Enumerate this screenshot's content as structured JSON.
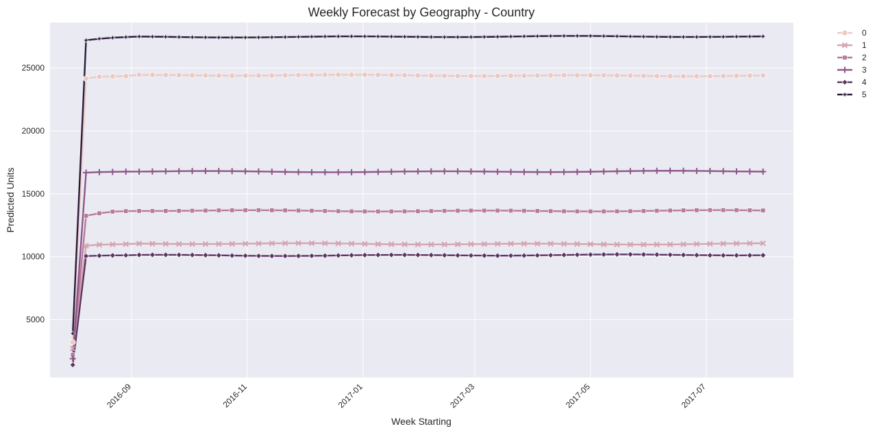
{
  "chart_data": {
    "type": "line",
    "title": "Weekly Forecast by Geography - Country",
    "xlabel": "Week Starting",
    "ylabel": "Predicted Units",
    "x_start": "2016-08-01",
    "x_weeks": 53,
    "xlim": [
      "2016-07-20",
      "2017-08-16"
    ],
    "ylim": [
      400,
      28600
    ],
    "y_ticks": [
      5000,
      10000,
      15000,
      20000,
      25000
    ],
    "x_ticks": [
      {
        "date": "2016-09-01",
        "label": "2016-09"
      },
      {
        "date": "2016-11-01",
        "label": "2016-11"
      },
      {
        "date": "2017-01-01",
        "label": "2017-01"
      },
      {
        "date": "2017-03-01",
        "label": "2017-03"
      },
      {
        "date": "2017-05-01",
        "label": "2017-05"
      },
      {
        "date": "2017-07-01",
        "label": "2017-07"
      }
    ],
    "grid": true,
    "legend_position": "outside-top-right",
    "series": [
      {
        "name": "0",
        "color": "#eccac4",
        "marker": "circle",
        "start": 3200,
        "level": 24400,
        "ramp": [
          24150,
          24300,
          24330,
          24350
        ]
      },
      {
        "name": "1",
        "color": "#d5a3b0",
        "marker": "x",
        "start": 2700,
        "level": 11020,
        "ramp": [
          10880,
          10950,
          10980,
          11000
        ]
      },
      {
        "name": "2",
        "color": "#b67a9c",
        "marker": "square",
        "start": 2200,
        "level": 13650,
        "ramp": [
          13250,
          13450,
          13580,
          13620
        ]
      },
      {
        "name": "3",
        "color": "#8d5688",
        "marker": "plus",
        "start": 1900,
        "level": 16770,
        "ramp": [
          16680,
          16720,
          16740,
          16760
        ]
      },
      {
        "name": "4",
        "color": "#5c3563",
        "marker": "diamond",
        "start": 1400,
        "level": 10120,
        "ramp": [
          10050,
          10080,
          10100,
          10110
        ]
      },
      {
        "name": "5",
        "color": "#2a1a3a",
        "marker": "star",
        "start": 3900,
        "level": 27480,
        "ramp": [
          27200,
          27320,
          27400,
          27450
        ]
      }
    ]
  }
}
